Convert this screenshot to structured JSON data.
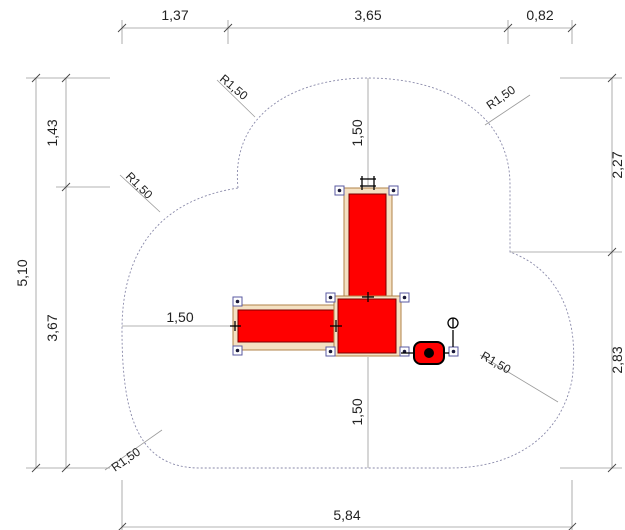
{
  "dimensions": {
    "top": [
      "1,37",
      "3,65",
      "0,82"
    ],
    "left": [
      "5,10",
      "1,43",
      "3,67"
    ],
    "right": [
      "2,27",
      "2,83"
    ],
    "bottom": "5,84",
    "inner_left": "1,50",
    "inner_top": "1,50",
    "inner_bottom": "1,50"
  },
  "radii": [
    "R1,50",
    "R1,50",
    "R1,50",
    "R1,50",
    "R1,50"
  ],
  "colors": {
    "play_surface": "#ff0000",
    "frame": "#f4e1c3",
    "safety_zone": "#8a8aaa",
    "dimension_line": "#9a9a9a"
  }
}
